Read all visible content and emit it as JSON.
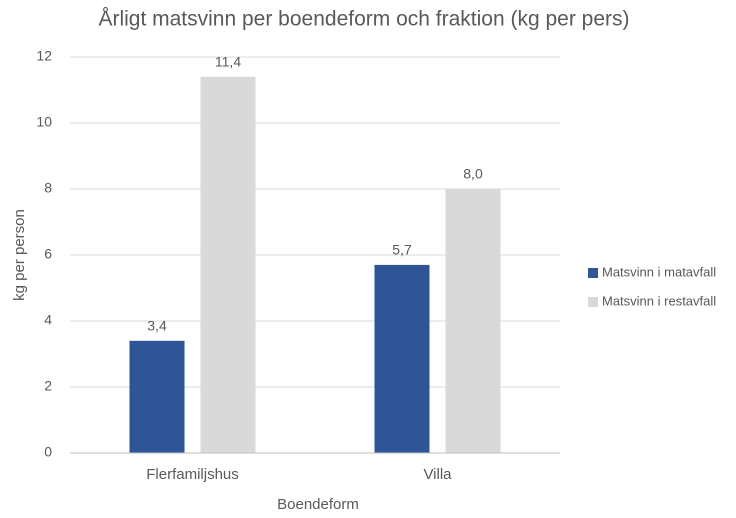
{
  "chart_data": {
    "type": "bar",
    "title": "Årligt matsvinn per boendeform och fraktion (kg per pers)",
    "x_label": "Boendeform",
    "y_label": "kg per person",
    "categories": [
      "Flerfamiljshus",
      "Villa"
    ],
    "series": [
      {
        "name": "Matsvinn i matavfall",
        "color": "#2f5597",
        "values": [
          3.4,
          5.7
        ],
        "value_labels": [
          "3,4",
          "5,7"
        ]
      },
      {
        "name": "Matsvinn i restavfall",
        "color": "#d9d9d9",
        "values": [
          11.4,
          8.0
        ],
        "value_labels": [
          "11,4",
          "8,0"
        ]
      }
    ],
    "ylim": [
      0,
      12
    ],
    "yticks": [
      0,
      2,
      4,
      6,
      8,
      10,
      12
    ],
    "grid": true,
    "legend": "right"
  }
}
